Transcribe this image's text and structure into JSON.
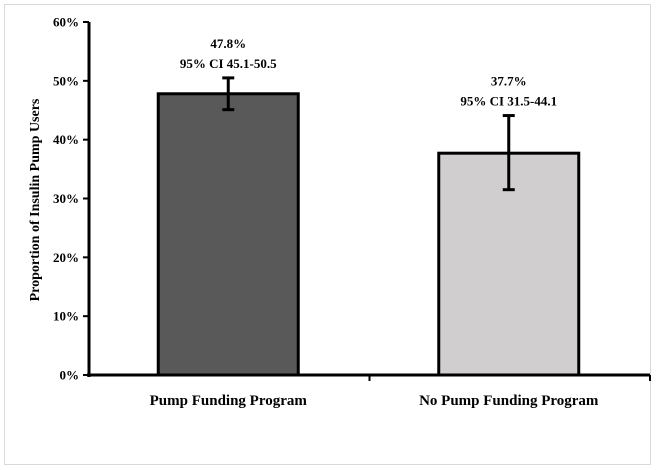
{
  "chart_data": {
    "type": "bar",
    "categories": [
      "Pump Funding Program",
      "No Pump Funding Program"
    ],
    "values": [
      47.8,
      37.7
    ],
    "error_bars": [
      {
        "low": 45.1,
        "high": 50.5
      },
      {
        "low": 31.5,
        "high": 44.1
      }
    ],
    "data_labels": [
      {
        "line1": "47.8%",
        "line2": "95% CI 45.1-50.5"
      },
      {
        "line1": "37.7%",
        "line2": "95% CI 31.5-44.1"
      }
    ],
    "bar_colors": [
      "#595959",
      "#d0cece"
    ],
    "title": "",
    "xlabel": "",
    "ylabel": "Proportion of Insulin Pump Users",
    "ylim": [
      0,
      60
    ],
    "yticks": [
      0,
      10,
      20,
      30,
      40,
      50,
      60
    ],
    "ytick_labels": [
      "0%",
      "10%",
      "20%",
      "30%",
      "40%",
      "50%",
      "60%"
    ],
    "grid": false,
    "legend": "none"
  }
}
